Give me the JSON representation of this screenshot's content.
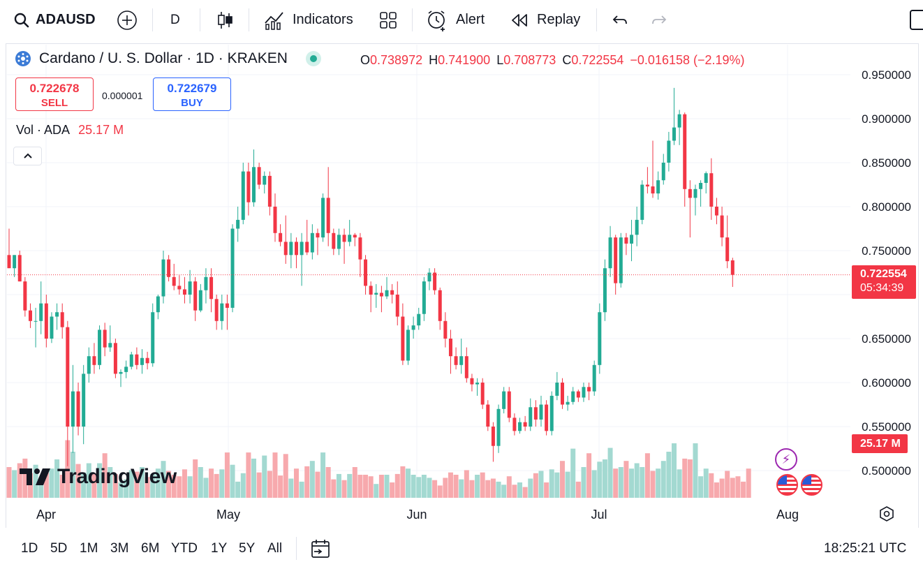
{
  "toolbar": {
    "symbol": "ADAUSD",
    "interval": "D",
    "indicators_label": "Indicators",
    "alert_label": "Alert",
    "replay_label": "Replay"
  },
  "legend": {
    "title": "Cardano / U. S. Dollar · 1D · KRAKEN",
    "open_label": "O",
    "open": "0.738972",
    "high_label": "H",
    "high": "0.741900",
    "low_label": "L",
    "low": "0.708773",
    "close_label": "C",
    "close": "0.722554",
    "change": "−0.016158 (−2.19%)"
  },
  "trade": {
    "sell_price": "0.722678",
    "sell_label": "SELL",
    "spread": "0.000001",
    "buy_price": "0.722679",
    "buy_label": "BUY"
  },
  "volume_legend": {
    "label": "Vol · ADA",
    "value": "25.17 M"
  },
  "price_axis": {
    "ticks": [
      "0.950000",
      "0.900000",
      "0.850000",
      "0.800000",
      "0.750000",
      "0.650000",
      "0.600000",
      "0.550000",
      "0.500000"
    ],
    "last_price": "0.722554",
    "countdown": "05:34:39",
    "volume_tag": "25.17 M"
  },
  "time_axis": {
    "labels": [
      "Apr",
      "May",
      "Jun",
      "Jul",
      "Aug"
    ]
  },
  "watermark": "TradingView",
  "bottom": {
    "ranges": [
      "1D",
      "5D",
      "1M",
      "3M",
      "6M",
      "YTD",
      "1Y",
      "5Y",
      "All"
    ],
    "clock": "18:25:21 UTC"
  },
  "colors": {
    "up": "#22ab94",
    "down": "#f23645",
    "up_volume": "#a3d9d1",
    "down_volume": "#f7a9ad",
    "accent_blue": "#2962ff"
  },
  "chart_data": {
    "type": "candlestick",
    "title": "Cardano / U. S. Dollar · 1D · KRAKEN",
    "x_labels": [
      "Apr",
      "May",
      "Jun",
      "Jul",
      "Aug"
    ],
    "ylim": [
      0.47,
      0.97
    ],
    "y_scale": "linear",
    "grid": true,
    "price": [
      {
        "o": 0.745,
        "h": 0.775,
        "l": 0.735,
        "c": 0.73
      },
      {
        "o": 0.73,
        "h": 0.745,
        "l": 0.72,
        "c": 0.745
      },
      {
        "o": 0.745,
        "h": 0.75,
        "l": 0.715,
        "c": 0.715
      },
      {
        "o": 0.715,
        "h": 0.72,
        "l": 0.675,
        "c": 0.682
      },
      {
        "o": 0.682,
        "h": 0.69,
        "l": 0.662,
        "c": 0.67
      },
      {
        "o": 0.67,
        "h": 0.685,
        "l": 0.64,
        "c": 0.67
      },
      {
        "o": 0.67,
        "h": 0.715,
        "l": 0.655,
        "c": 0.69
      },
      {
        "o": 0.69,
        "h": 0.7,
        "l": 0.64,
        "c": 0.65
      },
      {
        "o": 0.65,
        "h": 0.68,
        "l": 0.645,
        "c": 0.675
      },
      {
        "o": 0.675,
        "h": 0.69,
        "l": 0.66,
        "c": 0.68
      },
      {
        "o": 0.68,
        "h": 0.69,
        "l": 0.65,
        "c": 0.663
      },
      {
        "o": 0.663,
        "h": 0.67,
        "l": 0.505,
        "c": 0.55
      },
      {
        "o": 0.55,
        "h": 0.62,
        "l": 0.52,
        "c": 0.59
      },
      {
        "o": 0.59,
        "h": 0.6,
        "l": 0.54,
        "c": 0.55
      },
      {
        "o": 0.55,
        "h": 0.62,
        "l": 0.53,
        "c": 0.61
      },
      {
        "o": 0.61,
        "h": 0.64,
        "l": 0.6,
        "c": 0.63
      },
      {
        "o": 0.63,
        "h": 0.645,
        "l": 0.61,
        "c": 0.62
      },
      {
        "o": 0.62,
        "h": 0.665,
        "l": 0.615,
        "c": 0.66
      },
      {
        "o": 0.66,
        "h": 0.668,
        "l": 0.63,
        "c": 0.64
      },
      {
        "o": 0.64,
        "h": 0.665,
        "l": 0.635,
        "c": 0.645
      },
      {
        "o": 0.645,
        "h": 0.65,
        "l": 0.605,
        "c": 0.61
      },
      {
        "o": 0.61,
        "h": 0.615,
        "l": 0.595,
        "c": 0.612
      },
      {
        "o": 0.612,
        "h": 0.625,
        "l": 0.605,
        "c": 0.618
      },
      {
        "o": 0.618,
        "h": 0.635,
        "l": 0.615,
        "c": 0.632
      },
      {
        "o": 0.632,
        "h": 0.64,
        "l": 0.615,
        "c": 0.62
      },
      {
        "o": 0.62,
        "h": 0.638,
        "l": 0.61,
        "c": 0.628
      },
      {
        "o": 0.628,
        "h": 0.635,
        "l": 0.615,
        "c": 0.622
      },
      {
        "o": 0.622,
        "h": 0.69,
        "l": 0.618,
        "c": 0.68
      },
      {
        "o": 0.68,
        "h": 0.7,
        "l": 0.672,
        "c": 0.698
      },
      {
        "o": 0.698,
        "h": 0.75,
        "l": 0.69,
        "c": 0.74
      },
      {
        "o": 0.74,
        "h": 0.745,
        "l": 0.715,
        "c": 0.72
      },
      {
        "o": 0.72,
        "h": 0.735,
        "l": 0.705,
        "c": 0.71
      },
      {
        "o": 0.71,
        "h": 0.722,
        "l": 0.7,
        "c": 0.706
      },
      {
        "o": 0.706,
        "h": 0.72,
        "l": 0.69,
        "c": 0.7
      },
      {
        "o": 0.7,
        "h": 0.728,
        "l": 0.69,
        "c": 0.715
      },
      {
        "o": 0.715,
        "h": 0.72,
        "l": 0.67,
        "c": 0.682
      },
      {
        "o": 0.682,
        "h": 0.712,
        "l": 0.68,
        "c": 0.705
      },
      {
        "o": 0.705,
        "h": 0.73,
        "l": 0.69,
        "c": 0.72
      },
      {
        "o": 0.72,
        "h": 0.73,
        "l": 0.68,
        "c": 0.695
      },
      {
        "o": 0.695,
        "h": 0.7,
        "l": 0.66,
        "c": 0.67
      },
      {
        "o": 0.67,
        "h": 0.7,
        "l": 0.66,
        "c": 0.69
      },
      {
        "o": 0.69,
        "h": 0.7,
        "l": 0.66,
        "c": 0.685
      },
      {
        "o": 0.685,
        "h": 0.78,
        "l": 0.68,
        "c": 0.775
      },
      {
        "o": 0.775,
        "h": 0.8,
        "l": 0.76,
        "c": 0.785
      },
      {
        "o": 0.785,
        "h": 0.85,
        "l": 0.78,
        "c": 0.84
      },
      {
        "o": 0.84,
        "h": 0.85,
        "l": 0.79,
        "c": 0.805
      },
      {
        "o": 0.805,
        "h": 0.865,
        "l": 0.8,
        "c": 0.845
      },
      {
        "o": 0.845,
        "h": 0.85,
        "l": 0.82,
        "c": 0.825
      },
      {
        "o": 0.825,
        "h": 0.84,
        "l": 0.815,
        "c": 0.835
      },
      {
        "o": 0.835,
        "h": 0.84,
        "l": 0.79,
        "c": 0.8
      },
      {
        "o": 0.8,
        "h": 0.815,
        "l": 0.76,
        "c": 0.77
      },
      {
        "o": 0.77,
        "h": 0.78,
        "l": 0.755,
        "c": 0.76
      },
      {
        "o": 0.76,
        "h": 0.79,
        "l": 0.735,
        "c": 0.745
      },
      {
        "o": 0.745,
        "h": 0.77,
        "l": 0.73,
        "c": 0.76
      },
      {
        "o": 0.76,
        "h": 0.765,
        "l": 0.73,
        "c": 0.745
      },
      {
        "o": 0.745,
        "h": 0.77,
        "l": 0.71,
        "c": 0.76
      },
      {
        "o": 0.76,
        "h": 0.785,
        "l": 0.745,
        "c": 0.748
      },
      {
        "o": 0.748,
        "h": 0.78,
        "l": 0.74,
        "c": 0.77
      },
      {
        "o": 0.77,
        "h": 0.775,
        "l": 0.745,
        "c": 0.765
      },
      {
        "o": 0.765,
        "h": 0.815,
        "l": 0.76,
        "c": 0.81
      },
      {
        "o": 0.81,
        "h": 0.845,
        "l": 0.755,
        "c": 0.77
      },
      {
        "o": 0.77,
        "h": 0.775,
        "l": 0.745,
        "c": 0.752
      },
      {
        "o": 0.752,
        "h": 0.775,
        "l": 0.745,
        "c": 0.768
      },
      {
        "o": 0.768,
        "h": 0.775,
        "l": 0.735,
        "c": 0.76
      },
      {
        "o": 0.76,
        "h": 0.785,
        "l": 0.755,
        "c": 0.768
      },
      {
        "o": 0.768,
        "h": 0.77,
        "l": 0.755,
        "c": 0.765
      },
      {
        "o": 0.765,
        "h": 0.77,
        "l": 0.72,
        "c": 0.74
      },
      {
        "o": 0.74,
        "h": 0.745,
        "l": 0.7,
        "c": 0.71
      },
      {
        "o": 0.71,
        "h": 0.715,
        "l": 0.68,
        "c": 0.7
      },
      {
        "o": 0.7,
        "h": 0.712,
        "l": 0.685,
        "c": 0.702
      },
      {
        "o": 0.702,
        "h": 0.71,
        "l": 0.68,
        "c": 0.698
      },
      {
        "o": 0.698,
        "h": 0.72,
        "l": 0.695,
        "c": 0.705
      },
      {
        "o": 0.705,
        "h": 0.712,
        "l": 0.69,
        "c": 0.7
      },
      {
        "o": 0.7,
        "h": 0.715,
        "l": 0.665,
        "c": 0.675
      },
      {
        "o": 0.675,
        "h": 0.69,
        "l": 0.62,
        "c": 0.625
      },
      {
        "o": 0.625,
        "h": 0.665,
        "l": 0.62,
        "c": 0.66
      },
      {
        "o": 0.66,
        "h": 0.675,
        "l": 0.65,
        "c": 0.665
      },
      {
        "o": 0.665,
        "h": 0.685,
        "l": 0.66,
        "c": 0.678
      },
      {
        "o": 0.678,
        "h": 0.72,
        "l": 0.67,
        "c": 0.715
      },
      {
        "o": 0.715,
        "h": 0.73,
        "l": 0.705,
        "c": 0.725
      },
      {
        "o": 0.725,
        "h": 0.73,
        "l": 0.7,
        "c": 0.705
      },
      {
        "o": 0.705,
        "h": 0.708,
        "l": 0.66,
        "c": 0.67
      },
      {
        "o": 0.67,
        "h": 0.68,
        "l": 0.64,
        "c": 0.65
      },
      {
        "o": 0.65,
        "h": 0.66,
        "l": 0.61,
        "c": 0.63
      },
      {
        "o": 0.63,
        "h": 0.64,
        "l": 0.615,
        "c": 0.62
      },
      {
        "o": 0.62,
        "h": 0.65,
        "l": 0.61,
        "c": 0.63
      },
      {
        "o": 0.63,
        "h": 0.64,
        "l": 0.6,
        "c": 0.605
      },
      {
        "o": 0.605,
        "h": 0.61,
        "l": 0.59,
        "c": 0.598
      },
      {
        "o": 0.598,
        "h": 0.605,
        "l": 0.585,
        "c": 0.6
      },
      {
        "o": 0.6,
        "h": 0.605,
        "l": 0.57,
        "c": 0.575
      },
      {
        "o": 0.575,
        "h": 0.58,
        "l": 0.545,
        "c": 0.55
      },
      {
        "o": 0.55,
        "h": 0.555,
        "l": 0.51,
        "c": 0.528
      },
      {
        "o": 0.528,
        "h": 0.575,
        "l": 0.52,
        "c": 0.57
      },
      {
        "o": 0.57,
        "h": 0.595,
        "l": 0.565,
        "c": 0.59
      },
      {
        "o": 0.59,
        "h": 0.595,
        "l": 0.555,
        "c": 0.56
      },
      {
        "o": 0.56,
        "h": 0.565,
        "l": 0.54,
        "c": 0.545
      },
      {
        "o": 0.545,
        "h": 0.56,
        "l": 0.542,
        "c": 0.555
      },
      {
        "o": 0.555,
        "h": 0.562,
        "l": 0.545,
        "c": 0.55
      },
      {
        "o": 0.55,
        "h": 0.582,
        "l": 0.545,
        "c": 0.572
      },
      {
        "o": 0.572,
        "h": 0.58,
        "l": 0.55,
        "c": 0.558
      },
      {
        "o": 0.558,
        "h": 0.585,
        "l": 0.55,
        "c": 0.575
      },
      {
        "o": 0.575,
        "h": 0.58,
        "l": 0.54,
        "c": 0.545
      },
      {
        "o": 0.545,
        "h": 0.59,
        "l": 0.54,
        "c": 0.585
      },
      {
        "o": 0.585,
        "h": 0.612,
        "l": 0.58,
        "c": 0.6
      },
      {
        "o": 0.6,
        "h": 0.605,
        "l": 0.57,
        "c": 0.575
      },
      {
        "o": 0.575,
        "h": 0.585,
        "l": 0.568,
        "c": 0.578
      },
      {
        "o": 0.578,
        "h": 0.595,
        "l": 0.575,
        "c": 0.59
      },
      {
        "o": 0.59,
        "h": 0.592,
        "l": 0.578,
        "c": 0.583
      },
      {
        "o": 0.583,
        "h": 0.6,
        "l": 0.578,
        "c": 0.595
      },
      {
        "o": 0.595,
        "h": 0.6,
        "l": 0.58,
        "c": 0.59
      },
      {
        "o": 0.59,
        "h": 0.625,
        "l": 0.585,
        "c": 0.62
      },
      {
        "o": 0.62,
        "h": 0.69,
        "l": 0.61,
        "c": 0.68
      },
      {
        "o": 0.68,
        "h": 0.74,
        "l": 0.67,
        "c": 0.73
      },
      {
        "o": 0.73,
        "h": 0.778,
        "l": 0.72,
        "c": 0.765
      },
      {
        "o": 0.765,
        "h": 0.768,
        "l": 0.7,
        "c": 0.713
      },
      {
        "o": 0.713,
        "h": 0.77,
        "l": 0.708,
        "c": 0.765
      },
      {
        "o": 0.765,
        "h": 0.77,
        "l": 0.745,
        "c": 0.758
      },
      {
        "o": 0.758,
        "h": 0.785,
        "l": 0.738,
        "c": 0.768
      },
      {
        "o": 0.768,
        "h": 0.8,
        "l": 0.755,
        "c": 0.785
      },
      {
        "o": 0.785,
        "h": 0.83,
        "l": 0.78,
        "c": 0.825
      },
      {
        "o": 0.825,
        "h": 0.845,
        "l": 0.815,
        "c": 0.823
      },
      {
        "o": 0.823,
        "h": 0.875,
        "l": 0.81,
        "c": 0.815
      },
      {
        "o": 0.815,
        "h": 0.84,
        "l": 0.808,
        "c": 0.83
      },
      {
        "o": 0.83,
        "h": 0.86,
        "l": 0.825,
        "c": 0.85
      },
      {
        "o": 0.85,
        "h": 0.885,
        "l": 0.84,
        "c": 0.875
      },
      {
        "o": 0.875,
        "h": 0.935,
        "l": 0.87,
        "c": 0.89
      },
      {
        "o": 0.89,
        "h": 0.91,
        "l": 0.87,
        "c": 0.905
      },
      {
        "o": 0.905,
        "h": 0.907,
        "l": 0.8,
        "c": 0.82
      },
      {
        "o": 0.82,
        "h": 0.83,
        "l": 0.765,
        "c": 0.81
      },
      {
        "o": 0.81,
        "h": 0.825,
        "l": 0.79,
        "c": 0.82
      },
      {
        "o": 0.82,
        "h": 0.83,
        "l": 0.8,
        "c": 0.827
      },
      {
        "o": 0.827,
        "h": 0.84,
        "l": 0.815,
        "c": 0.838
      },
      {
        "o": 0.838,
        "h": 0.855,
        "l": 0.785,
        "c": 0.8
      },
      {
        "o": 0.8,
        "h": 0.81,
        "l": 0.78,
        "c": 0.79
      },
      {
        "o": 0.79,
        "h": 0.8,
        "l": 0.755,
        "c": 0.765
      },
      {
        "o": 0.765,
        "h": 0.79,
        "l": 0.73,
        "c": 0.738
      },
      {
        "o": 0.738972,
        "h": 0.7419,
        "l": 0.708773,
        "c": 0.722554
      }
    ],
    "volume": [
      4.0,
      3.6,
      4.5,
      5.1,
      3.2,
      4.3,
      2.0,
      3.3,
      3.8,
      5.0,
      3.0,
      7.5,
      6.0,
      4.4,
      3.3,
      4.5,
      3.2,
      4.5,
      5.8,
      4.0,
      3.1,
      2.0,
      2.4,
      3.6,
      3.4,
      4.0,
      2.7,
      3.1,
      3.8,
      4.8,
      3.5,
      3.0,
      2.8,
      3.7,
      2.8,
      5.0,
      4.0,
      2.6,
      3.8,
      3.1,
      3.7,
      5.9,
      4.3,
      2.1,
      3.2,
      5.9,
      5.1,
      3.3,
      5.5,
      3.5,
      5.9,
      2.9,
      5.7,
      2.5,
      3.8,
      2.1,
      4.1,
      4.8,
      3.4,
      5.9,
      4.0,
      2.4,
      3.1,
      2.3,
      3.1,
      4.0,
      3.0,
      3.0,
      2.8,
      1.8,
      3.0,
      3.0,
      2.0,
      3.1,
      4.1,
      3.8,
      3.0,
      2.7,
      3.0,
      2.6,
      2.3,
      1.6,
      2.6,
      3.3,
      3.0,
      2.4,
      3.6,
      2.3,
      3.0,
      3.3,
      2.3,
      2.5,
      2.1,
      1.7,
      2.8,
      1.7,
      2.0,
      1.4,
      2.5,
      3.2,
      3.5,
      2.0,
      3.7,
      3.3,
      4.8,
      3.4,
      6.4,
      2.1,
      4.0,
      5.8,
      3.6,
      4.7,
      5.0,
      6.5,
      3.8,
      4.0,
      4.8,
      3.8,
      4.5,
      4.0,
      5.8,
      3.5,
      3.8,
      4.8,
      6.0,
      7.1,
      3.7,
      5.1,
      5.0,
      7.1,
      2.8,
      3.8,
      3.2,
      2.0,
      2.5,
      3.5,
      2.6,
      2.8,
      2.1,
      3.8
    ]
  }
}
